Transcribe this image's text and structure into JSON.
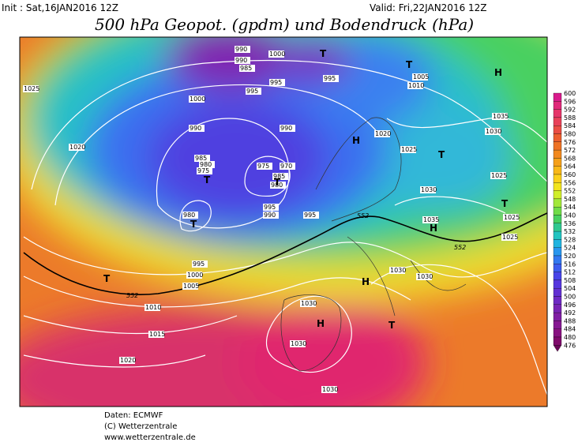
{
  "header": {
    "init": "Init : Sat,16JAN2016 12Z",
    "valid": "Valid: Fri,22JAN2016 12Z",
    "title": "500 hPa Geopot. (gpdm) und Bodendruck (hPa)"
  },
  "legend": {
    "labels": [
      600,
      596,
      592,
      588,
      584,
      580,
      576,
      572,
      568,
      564,
      560,
      556,
      552,
      548,
      544,
      540,
      536,
      532,
      528,
      524,
      520,
      516,
      512,
      508,
      504,
      500,
      496,
      492,
      488,
      484,
      480,
      476
    ],
    "colors": [
      "#d81b8c",
      "#e0297a",
      "#e6366a",
      "#e8425a",
      "#ea4e45",
      "#ec5f30",
      "#ee7326",
      "#f2891e",
      "#f5a01a",
      "#f8b818",
      "#fbd01a",
      "#f2e41e",
      "#d0ee2a",
      "#a2e83a",
      "#70dc48",
      "#48d060",
      "#30c890",
      "#22c4c0",
      "#20b4e0",
      "#2896ee",
      "#3278f0",
      "#3c5cee",
      "#4844e8",
      "#5636de",
      "#6230d2",
      "#6e2ac4",
      "#7824b4",
      "#801ea4",
      "#861892",
      "#881280",
      "#800c6c",
      "#6a0858"
    ]
  },
  "isobar_labels": [
    "1025",
    "1020",
    "1000",
    "990",
    "985",
    "980",
    "975",
    "980",
    "995",
    "1000",
    "1005",
    "1010",
    "1015",
    "1020",
    "990",
    "990",
    "985",
    "995",
    "995",
    "1000",
    "995",
    "990",
    "975",
    "970",
    "985",
    "980",
    "995",
    "990",
    "995",
    "1020",
    "1025",
    "1005",
    "1010",
    "1035",
    "1030",
    "1025",
    "1030",
    "1035",
    "1025",
    "1025",
    "1030",
    "1030",
    "1030",
    "1030",
    "1030"
  ],
  "geopotential_labels": [
    "552",
    "552",
    "552"
  ],
  "pressure_centers": [
    "T",
    "T",
    "H",
    "H",
    "T",
    "T",
    "T",
    "T",
    "T",
    "H",
    "H",
    "T",
    "H",
    "T"
  ],
  "footer": {
    "source": "Daten: ECMWF",
    "copyright": "(C) Wetterzentrale",
    "url": "www.wetterzentrale.de"
  }
}
